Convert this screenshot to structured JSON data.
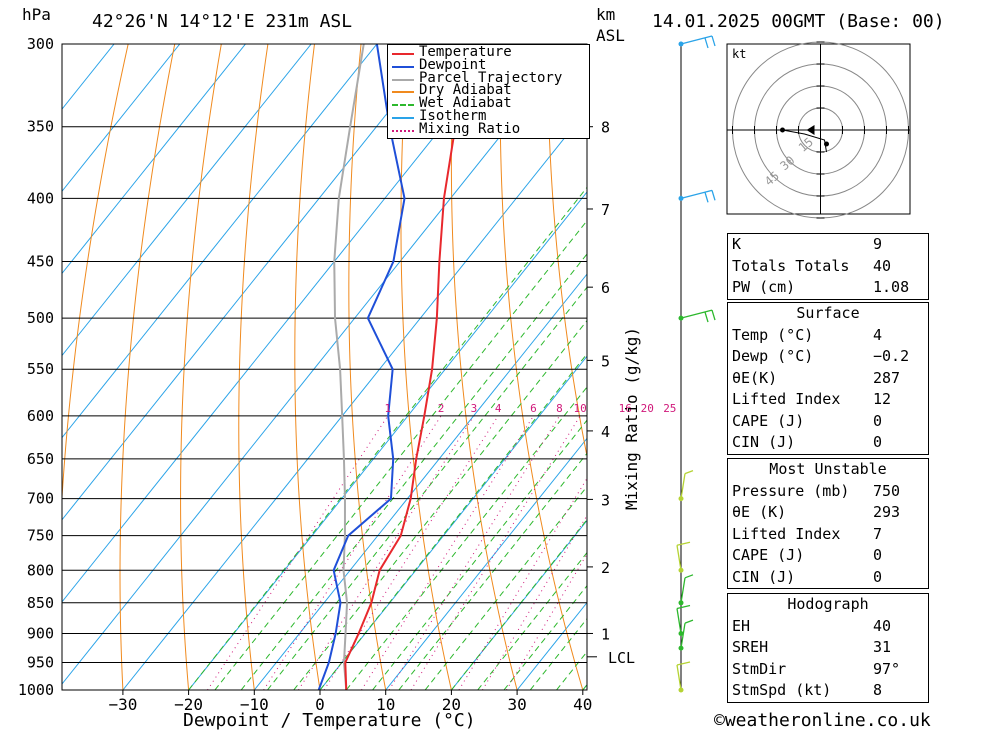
{
  "header": {
    "hpa_label": "hPa",
    "location": "42°26'N  14°12'E  231m  ASL",
    "km_label": "km",
    "asl_label": "ASL",
    "datetime": "14.01.2025  00GMT  (Base: 00)"
  },
  "legend": {
    "items": [
      {
        "label": "Temperature",
        "color": "#e8282d",
        "style": "solid"
      },
      {
        "label": "Dewpoint",
        "color": "#1f4fd8",
        "style": "solid"
      },
      {
        "label": "Parcel Trajectory",
        "color": "#aaaaaa",
        "style": "solid"
      },
      {
        "label": "Dry Adiabat",
        "color": "#f08a1e",
        "style": "solid"
      },
      {
        "label": "Wet Adiabat",
        "color": "#2db82d",
        "style": "dashed"
      },
      {
        "label": "Isotherm",
        "color": "#2aa3e8",
        "style": "solid"
      },
      {
        "label": "Mixing Ratio",
        "color": "#d0187a",
        "style": "dotted"
      }
    ]
  },
  "chart_data": {
    "type": "skew-t log-p",
    "xlabel": "Dewpoint / Temperature (°C)",
    "ylabel": "hPa",
    "x_ticks": [
      "−30",
      "−20",
      "−10",
      "0",
      "10",
      "20",
      "30",
      "40"
    ],
    "pressure_levels": [
      300,
      350,
      400,
      450,
      500,
      550,
      600,
      650,
      700,
      750,
      800,
      850,
      900,
      950,
      1000
    ],
    "km_ticks": [
      {
        "label": "8",
        "p": 350
      },
      {
        "label": "7",
        "p": 408
      },
      {
        "label": "6",
        "p": 472
      },
      {
        "label": "5",
        "p": 541
      },
      {
        "label": "4",
        "p": 617
      },
      {
        "label": "3",
        "p": 701
      },
      {
        "label": "2",
        "p": 795
      },
      {
        "label": "1",
        "p": 900
      }
    ],
    "lcl": {
      "label": "LCL",
      "p": 940
    },
    "mixing_ratio_axis_label": "Mixing Ratio (g/kg)",
    "mixing_ratio_labels": [
      "1",
      "2",
      "3",
      "4",
      "6",
      "8",
      "10",
      "16",
      "20",
      "25"
    ],
    "mixing_ratio_values": [
      1,
      2,
      3,
      4,
      6,
      8,
      10,
      16,
      20,
      25
    ],
    "temperature": {
      "name": "Temperature",
      "points": [
        [
          1000,
          4
        ],
        [
          950,
          0.5
        ],
        [
          900,
          -1
        ],
        [
          850,
          -2.8
        ],
        [
          800,
          -5.5
        ],
        [
          750,
          -6.5
        ],
        [
          700,
          -9.5
        ],
        [
          650,
          -13.5
        ],
        [
          600,
          -17.5
        ],
        [
          550,
          -22
        ],
        [
          500,
          -27.5
        ],
        [
          450,
          -34
        ],
        [
          400,
          -41
        ],
        [
          350,
          -48
        ],
        [
          300,
          -54
        ]
      ]
    },
    "dewpoint": {
      "name": "Dewpoint",
      "points": [
        [
          1000,
          -0.2
        ],
        [
          950,
          -2
        ],
        [
          900,
          -4.5
        ],
        [
          850,
          -7.5
        ],
        [
          800,
          -12.5
        ],
        [
          750,
          -14.5
        ],
        [
          700,
          -12.5
        ],
        [
          650,
          -17
        ],
        [
          600,
          -23
        ],
        [
          550,
          -28
        ],
        [
          500,
          -38
        ],
        [
          450,
          -41
        ],
        [
          400,
          -47
        ],
        [
          350,
          -58
        ],
        [
          300,
          -70
        ]
      ]
    },
    "parcel": {
      "name": "Parcel Trajectory",
      "points": [
        [
          1000,
          4
        ],
        [
          950,
          0.3
        ],
        [
          900,
          -3
        ],
        [
          850,
          -6.5
        ],
        [
          800,
          -11
        ],
        [
          750,
          -15
        ],
        [
          700,
          -19.5
        ],
        [
          650,
          -24.5
        ],
        [
          600,
          -30
        ],
        [
          550,
          -36
        ],
        [
          500,
          -43
        ],
        [
          450,
          -50
        ],
        [
          400,
          -57
        ],
        [
          350,
          -64
        ],
        [
          300,
          -72
        ]
      ]
    },
    "wind_barbs": [
      {
        "p": 300,
        "color": "#2aa3e8"
      },
      {
        "p": 400,
        "color": "#2aa3e8"
      },
      {
        "p": 500,
        "color": "#2db82d"
      },
      {
        "p": 700,
        "color": "#b5d334"
      },
      {
        "p": 800,
        "color": "#b5d334"
      },
      {
        "p": 850,
        "color": "#2db82d"
      },
      {
        "p": 900,
        "color": "#2db82d"
      },
      {
        "p": 925,
        "color": "#2db82d"
      },
      {
        "p": 1000,
        "color": "#b5d334"
      }
    ]
  },
  "hodograph": {
    "unit_label": "kt",
    "ring_labels": [
      "15",
      "30",
      "45"
    ]
  },
  "indices": {
    "k_label": "K",
    "k_value": "9",
    "tt_label": "Totals Totals",
    "tt_value": "40",
    "pw_label": "PW (cm)",
    "pw_value": "1.08",
    "surface_title": "Surface",
    "s_temp_label": "Temp (°C)",
    "s_temp_value": "4",
    "s_dewp_label": "Dewp (°C)",
    "s_dewp_value": "−0.2",
    "s_theta_label": "θE(K)",
    "s_theta_value": "287",
    "s_li_label": "Lifted Index",
    "s_li_value": "12",
    "s_cape_label": "CAPE (J)",
    "s_cape_value": "0",
    "s_cin_label": "CIN (J)",
    "s_cin_value": "0",
    "mu_title": "Most Unstable",
    "mu_p_label": "Pressure (mb)",
    "mu_p_value": "750",
    "mu_theta_label": "θE (K)",
    "mu_theta_value": "293",
    "mu_li_label": "Lifted Index",
    "mu_li_value": "7",
    "mu_cape_label": "CAPE (J)",
    "mu_cape_value": "0",
    "mu_cin_label": "CIN (J)",
    "mu_cin_value": "0",
    "hodo_title": "Hodograph",
    "eh_label": "EH",
    "eh_value": "40",
    "sreh_label": "SREH",
    "sreh_value": "31",
    "stmdir_label": "StmDir",
    "stmdir_value": "97°",
    "stmspd_label": "StmSpd (kt)",
    "stmspd_value": "8"
  },
  "footer": {
    "copyright": "©weatheronline.co.uk"
  }
}
